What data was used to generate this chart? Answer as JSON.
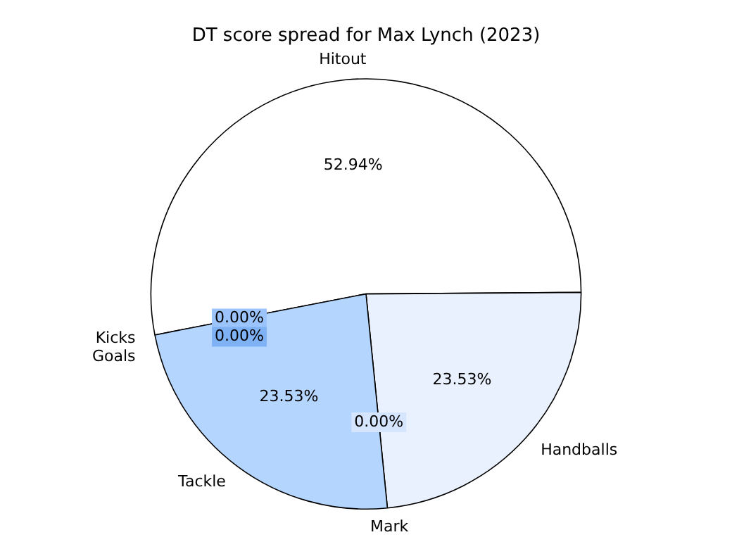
{
  "chart_data": {
    "type": "pie",
    "title": "DT score spread for Max Lynch (2023)",
    "categories": [
      "Hitout",
      "Handballs",
      "Mark",
      "Tackle",
      "Kicks",
      "Goals"
    ],
    "values": [
      52.94,
      23.53,
      0,
      23.53,
      0,
      0
    ],
    "colors": [
      "#ffffff",
      "#eaf1fe",
      "#d5e5fd",
      "#b4d5fe",
      "#9ac4fb",
      "#7fb2f5"
    ],
    "value_labels": [
      "52.94%",
      "23.53%",
      "0.00%",
      "23.53%",
      "0.00%",
      "0.00%"
    ],
    "legend": false
  }
}
